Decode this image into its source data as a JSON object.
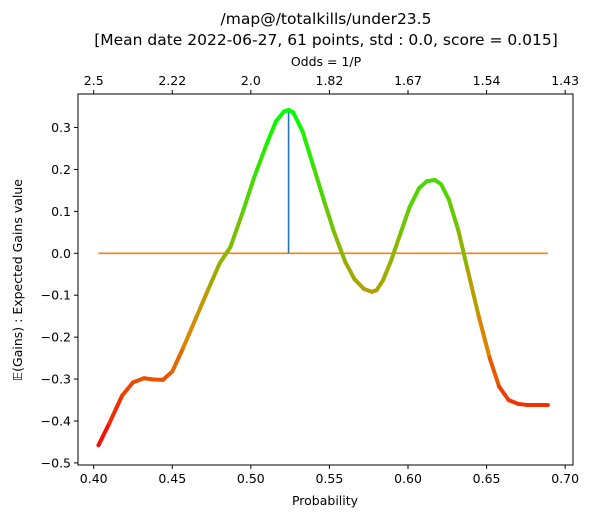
{
  "chart_data": {
    "type": "line",
    "title": "/map@/totalkills/under23.5",
    "subtitle": "[Mean date 2022-06-27, 61 points, std : 0.0, score = 0.015]",
    "xlabel": "Probability",
    "ylabel": "$\\mathbb{E}(Gains)$ : Expected Gains value",
    "ylabel_display": "𝔼(Gains) : Expected Gains value",
    "top_axis_label": "Odds = 1/P",
    "top_axis_label_display": "Odds  = 1/P",
    "xlim": [
      0.39,
      0.705
    ],
    "ylim": [
      -0.505,
      0.38
    ],
    "x_ticks": [
      0.4,
      0.45,
      0.5,
      0.55,
      0.6,
      0.65,
      0.7
    ],
    "x_tick_labels": [
      "0.40",
      "0.45",
      "0.50",
      "0.55",
      "0.60",
      "0.65",
      "0.70"
    ],
    "y_ticks": [
      -0.5,
      -0.4,
      -0.3,
      -0.2,
      -0.1,
      0.0,
      0.1,
      0.2,
      0.3
    ],
    "y_tick_labels": [
      "−0.5",
      "−0.4",
      "−0.3",
      "−0.2",
      "−0.1",
      "0.0",
      "0.1",
      "0.2",
      "0.3"
    ],
    "top_ticks": [
      {
        "prob": 0.4,
        "label": "2.5"
      },
      {
        "prob": 0.45,
        "label": "2.22"
      },
      {
        "prob": 0.5,
        "label": "2.0"
      },
      {
        "prob": 0.55,
        "label": "1.82"
      },
      {
        "prob": 0.6,
        "label": "1.67"
      },
      {
        "prob": 0.65,
        "label": "1.54"
      },
      {
        "prob": 0.7,
        "label": "1.43"
      }
    ],
    "series": [
      {
        "x": [
          0.403,
          0.41,
          0.418,
          0.425,
          0.432,
          0.438,
          0.444,
          0.45,
          0.457,
          0.465,
          0.473,
          0.48,
          0.487,
          0.495,
          0.502,
          0.51,
          0.516,
          0.521,
          0.524,
          0.527,
          0.533,
          0.54,
          0.547,
          0.553,
          0.56,
          0.566,
          0.572,
          0.577,
          0.58,
          0.584,
          0.589,
          0.595,
          0.601,
          0.607,
          0.612,
          0.617,
          0.621,
          0.626,
          0.632,
          0.638,
          0.645,
          0.652,
          0.658,
          0.664,
          0.67,
          0.676,
          0.682,
          0.689
        ],
        "y": [
          -0.458,
          -0.405,
          -0.34,
          -0.308,
          -0.298,
          -0.301,
          -0.302,
          -0.282,
          -0.225,
          -0.155,
          -0.085,
          -0.025,
          0.015,
          0.1,
          0.18,
          0.26,
          0.315,
          0.338,
          0.342,
          0.336,
          0.29,
          0.205,
          0.12,
          0.05,
          -0.02,
          -0.062,
          -0.085,
          -0.092,
          -0.088,
          -0.065,
          -0.02,
          0.045,
          0.11,
          0.155,
          0.172,
          0.175,
          0.165,
          0.128,
          0.055,
          -0.04,
          -0.15,
          -0.25,
          -0.318,
          -0.35,
          -0.359,
          -0.362,
          -0.362,
          -0.362
        ]
      }
    ],
    "colors": {
      "baseline": "#ff7f0e",
      "marker": "#1f77b4",
      "gradient_low": "#ff0000",
      "gradient_mid": "#d98d00",
      "gradient_high": "#00ff00"
    },
    "baseline": {
      "y": 0.0,
      "x_start": 0.403,
      "x_end": 0.689
    },
    "peak_marker": {
      "x": 0.524,
      "y_from": 0.0,
      "y_to": 0.342
    }
  }
}
